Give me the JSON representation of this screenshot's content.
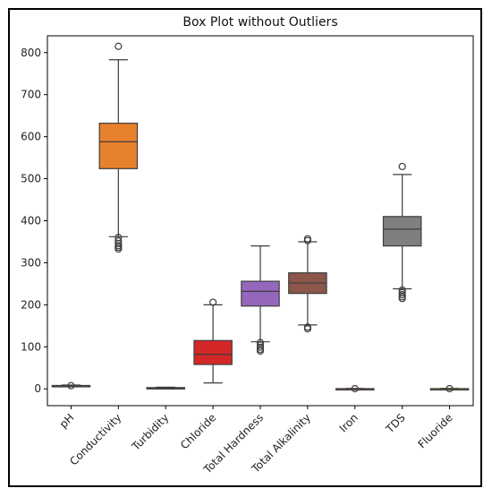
{
  "chart_data": {
    "type": "box",
    "title": "Box Plot without Outliers",
    "xlabel": "",
    "ylabel": "",
    "ylim": [
      -40,
      840
    ],
    "yticks": [
      0,
      100,
      200,
      300,
      400,
      500,
      600,
      700,
      800
    ],
    "categories": [
      "pH",
      "Conductivity",
      "Turbidity",
      "Chloride",
      "Total Hardness",
      "Total Alkalinity",
      "Iron",
      "TDS",
      "Fluoride"
    ],
    "boxes": [
      {
        "name": "pH",
        "color": "#1f77b4",
        "whisker_low": 6,
        "q1": 7,
        "median": 7.5,
        "q3": 8,
        "whisker_high": 9,
        "outliers": [
          7.5
        ]
      },
      {
        "name": "Conductivity",
        "color": "#e8812c",
        "whisker_low": 362,
        "q1": 524,
        "median": 588,
        "q3": 632,
        "whisker_high": 783,
        "outliers": [
          815,
          360,
          352,
          346,
          341,
          337,
          333
        ]
      },
      {
        "name": "Turbidity",
        "color": "#2ca02c",
        "whisker_low": 0,
        "q1": 1,
        "median": 2,
        "q3": 3,
        "whisker_high": 4,
        "outliers": []
      },
      {
        "name": "Chloride",
        "color": "#d62728",
        "whisker_low": 14,
        "q1": 58,
        "median": 82,
        "q3": 115,
        "whisker_high": 200,
        "outliers": [
          206
        ]
      },
      {
        "name": "Total Hardness",
        "color": "#9467bd",
        "whisker_low": 112,
        "q1": 197,
        "median": 232,
        "q3": 256,
        "whisker_high": 340,
        "outliers": [
          110,
          104,
          99,
          94,
          90
        ]
      },
      {
        "name": "Total Alkalinity",
        "color": "#8c564b",
        "whisker_low": 152,
        "q1": 227,
        "median": 252,
        "q3": 276,
        "whisker_high": 350,
        "outliers": [
          357,
          353,
          147,
          143
        ]
      },
      {
        "name": "Iron",
        "color": "#e377c2",
        "whisker_low": 0,
        "q1": 0,
        "median": 0.3,
        "q3": 0.6,
        "whisker_high": 1,
        "outliers": [
          0.5
        ]
      },
      {
        "name": "TDS",
        "color": "#7f7f7f",
        "whisker_low": 238,
        "q1": 340,
        "median": 380,
        "q3": 410,
        "whisker_high": 510,
        "outliers": [
          529,
          235,
          229,
          224,
          219,
          215
        ]
      },
      {
        "name": "Fluoride",
        "color": "#bcbd22",
        "whisker_low": 0,
        "q1": 0,
        "median": 0.3,
        "q3": 0.6,
        "whisker_high": 1,
        "outliers": [
          0.5
        ]
      }
    ],
    "grid": false,
    "legend": "none"
  }
}
